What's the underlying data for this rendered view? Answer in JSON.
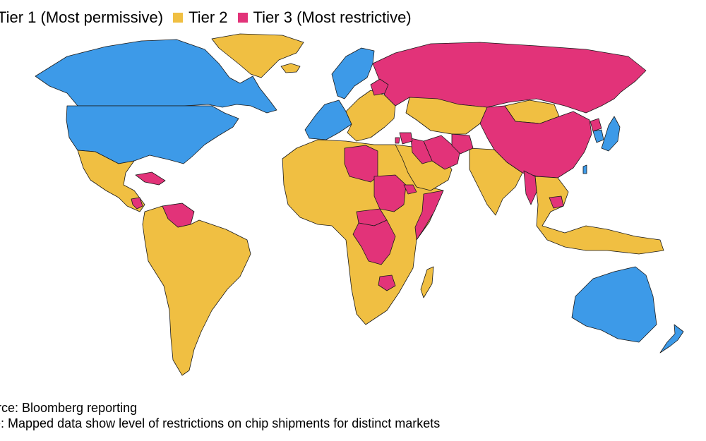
{
  "legend": {
    "items": [
      {
        "label": "Tier 1 (Most permissive)",
        "color": "#3d9ae8"
      },
      {
        "label": "Tier 2",
        "color": "#f0bf42"
      },
      {
        "label": "Tier 3 (Most restrictive)",
        "color": "#e23379"
      }
    ]
  },
  "map": {
    "regions": [
      {
        "region": "Canada",
        "tier": 1
      },
      {
        "region": "United States",
        "tier": 1
      },
      {
        "region": "Greenland",
        "tier": 2
      },
      {
        "region": "Iceland",
        "tier": 2
      },
      {
        "region": "Mexico and Central America",
        "tier": 2
      },
      {
        "region": "Cuba",
        "tier": 3
      },
      {
        "region": "Nicaragua",
        "tier": 3
      },
      {
        "region": "Venezuela",
        "tier": 3
      },
      {
        "region": "South America",
        "tier": 2
      },
      {
        "region": "Western Europe",
        "tier": 1
      },
      {
        "region": "Scandinavia",
        "tier": 1
      },
      {
        "region": "Eastern Europe",
        "tier": 2
      },
      {
        "region": "Belarus",
        "tier": 3
      },
      {
        "region": "Russia",
        "tier": 3
      },
      {
        "region": "Africa",
        "tier": 2
      },
      {
        "region": "Libya",
        "tier": 3
      },
      {
        "region": "Sudan",
        "tier": 3
      },
      {
        "region": "Central African Republic",
        "tier": 3
      },
      {
        "region": "Democratic Republic of the Congo",
        "tier": 3
      },
      {
        "region": "Somalia",
        "tier": 3
      },
      {
        "region": "Eritrea",
        "tier": 3
      },
      {
        "region": "Zimbabwe",
        "tier": 3
      },
      {
        "region": "Madagascar",
        "tier": 2
      },
      {
        "region": "Middle East",
        "tier": 2
      },
      {
        "region": "Iran",
        "tier": 3
      },
      {
        "region": "Iraq",
        "tier": 3
      },
      {
        "region": "Syria",
        "tier": 3
      },
      {
        "region": "Lebanon",
        "tier": 3
      },
      {
        "region": "Afghanistan",
        "tier": 3
      },
      {
        "region": "Central Asia",
        "tier": 2
      },
      {
        "region": "Mongolia",
        "tier": 2
      },
      {
        "region": "China",
        "tier": 3
      },
      {
        "region": "North Korea",
        "tier": 3
      },
      {
        "region": "South Korea",
        "tier": 1
      },
      {
        "region": "Japan",
        "tier": 1
      },
      {
        "region": "Taiwan",
        "tier": 1
      },
      {
        "region": "India",
        "tier": 2
      },
      {
        "region": "Myanmar",
        "tier": 3
      },
      {
        "region": "Cambodia",
        "tier": 3
      },
      {
        "region": "Southeast Asia",
        "tier": 2
      },
      {
        "region": "Australia",
        "tier": 1
      },
      {
        "region": "New Zealand",
        "tier": 1
      }
    ]
  },
  "footer": {
    "source": "urce: Bloomberg reporting",
    "note": "te: Mapped data show level of restrictions on chip shipments for distinct markets"
  }
}
